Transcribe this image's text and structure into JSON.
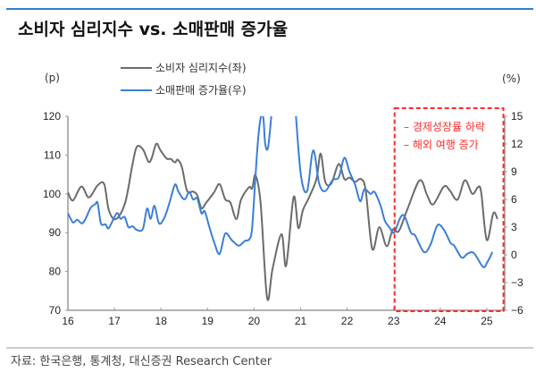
{
  "title": "소비자 심리지수 vs. 소매판매 증가율",
  "source": "자료: 한국은행, 통계청, 대신증권 Research Center",
  "annotation": {
    "lines": [
      "– 경제성장률 하락",
      "– 해외 여행 증가"
    ],
    "color": "#ff2a2a",
    "range": [
      23,
      25.3
    ]
  },
  "chart_data": {
    "type": "line",
    "title": "소비자 심리지수 vs. 소매판매 증가율",
    "ylabel_left": "(p)",
    "ylabel_right": "(%)",
    "x_ticks": [
      "16",
      "17",
      "18",
      "19",
      "20",
      "21",
      "22",
      "23",
      "24",
      "25"
    ],
    "xlim": [
      16,
      25.4
    ],
    "ylim_left": [
      70,
      120
    ],
    "yticks_left": [
      "70",
      "80",
      "90",
      "100",
      "110",
      "120"
    ],
    "ylim_right": [
      -6,
      15
    ],
    "yticks_right": [
      "−6",
      "−3",
      "0",
      "3",
      "6",
      "9",
      "12",
      "15"
    ],
    "grid": false,
    "legend_position": "top-left",
    "series": [
      {
        "name": "소비자 심리지수(좌)",
        "axis": "left",
        "color": "#6b6b6b",
        "x": [
          16.0,
          16.11,
          16.29,
          16.45,
          16.64,
          16.78,
          16.88,
          17.03,
          17.23,
          17.39,
          17.48,
          17.61,
          17.73,
          17.8,
          17.9,
          17.99,
          18.12,
          18.21,
          18.3,
          18.36,
          18.45,
          18.56,
          18.69,
          18.78,
          18.87,
          18.97,
          19.14,
          19.26,
          19.38,
          19.49,
          19.62,
          19.72,
          19.89,
          19.96,
          20.03,
          20.14,
          20.28,
          20.4,
          20.59,
          20.69,
          20.85,
          20.95,
          21.05,
          21.17,
          21.34,
          21.43,
          21.53,
          21.66,
          21.82,
          21.94,
          22.05,
          22.17,
          22.3,
          22.4,
          22.54,
          22.69,
          22.85,
          22.98,
          23.11,
          23.3,
          23.56,
          23.72,
          23.85,
          24.08,
          24.21,
          24.37,
          24.53,
          24.69,
          24.81,
          24.88,
          25.0,
          25.14,
          25.23
        ],
        "values": [
          100.4,
          98.3,
          101.9,
          99.1,
          102.2,
          102.5,
          95.8,
          93.5,
          97.7,
          107.7,
          112.1,
          111.5,
          108.3,
          109.2,
          112.9,
          111.2,
          109.1,
          109.0,
          108.1,
          108.8,
          106.9,
          100.8,
          100.6,
          99.6,
          96.3,
          97.7,
          100.4,
          102.5,
          98.6,
          97.8,
          93.5,
          98.5,
          101.7,
          101.4,
          104.8,
          97.7,
          73.2,
          80.8,
          89.6,
          81.5,
          99.2,
          91.2,
          95.8,
          98.8,
          103.8,
          110.4,
          103.1,
          102.7,
          107.7,
          103.8,
          104.2,
          103.1,
          103.8,
          100.8,
          85.8,
          91.4,
          86.5,
          90.8,
          90.4,
          96.2,
          103.5,
          99.6,
          97.3,
          101.9,
          100.8,
          98.5,
          103.5,
          100.0,
          101.7,
          100.4,
          88.1,
          95.0,
          93.5
        ]
      },
      {
        "name": "소매판매 증가율(우)",
        "axis": "right",
        "color": "#3a7fd8",
        "x": [
          16.0,
          16.11,
          16.2,
          16.3,
          16.38,
          16.49,
          16.59,
          16.64,
          16.71,
          16.81,
          16.88,
          17.05,
          17.13,
          17.22,
          17.3,
          17.39,
          17.48,
          17.61,
          17.7,
          17.78,
          17.86,
          17.96,
          18.08,
          18.18,
          18.3,
          18.37,
          18.47,
          18.53,
          18.61,
          18.69,
          18.78,
          18.87,
          18.94,
          19.04,
          19.14,
          19.26,
          19.38,
          19.52,
          19.67,
          19.8,
          19.9,
          19.96,
          20.03,
          20.09,
          20.15,
          20.2,
          20.24,
          20.3,
          20.37,
          20.9,
          21.01,
          21.14,
          21.27,
          21.4,
          21.53,
          21.69,
          21.82,
          21.94,
          22.05,
          22.17,
          22.28,
          22.37,
          22.5,
          22.59,
          22.72,
          22.81,
          22.92,
          23.01,
          23.14,
          23.23,
          23.37,
          23.46,
          23.65,
          23.79,
          23.94,
          24.08,
          24.22,
          24.3,
          24.46,
          24.58,
          24.72,
          24.92,
          25.01,
          25.12
        ],
        "values": [
          4.5,
          3.5,
          3.8,
          3.4,
          3.9,
          5.1,
          5.5,
          5.6,
          3.4,
          3.3,
          2.9,
          4.5,
          3.9,
          4.1,
          3.0,
          3.1,
          2.7,
          2.8,
          5.0,
          3.9,
          5.3,
          3.4,
          4.1,
          5.6,
          7.6,
          6.9,
          6.1,
          6.1,
          6.8,
          6.0,
          6.1,
          4.5,
          4.7,
          3.0,
          1.4,
          0.1,
          2.3,
          1.6,
          1.0,
          1.5,
          1.7,
          3.0,
          8.5,
          12.7,
          15.0,
          14.8,
          12.0,
          11.6,
          15.0,
          15.0,
          8.5,
          6.9,
          11.3,
          7.7,
          6.9,
          8.1,
          8.4,
          10.5,
          9.0,
          7.6,
          5.8,
          7.1,
          6.6,
          6.8,
          5.3,
          3.7,
          2.9,
          2.4,
          4.0,
          4.2,
          2.4,
          2.1,
          0.3,
          1.1,
          3.2,
          2.7,
          1.3,
          1.0,
          -0.3,
          0.1,
          0.2,
          -1.3,
          -0.8,
          0.3
        ],
        "gaps_after_x": [
          20.37
        ]
      }
    ]
  }
}
